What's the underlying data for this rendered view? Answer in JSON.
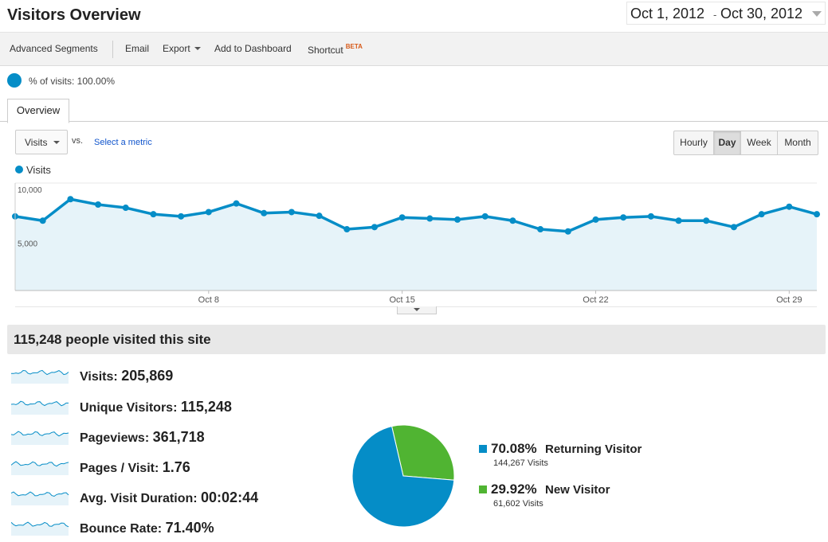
{
  "header": {
    "title": "Visitors Overview",
    "date_start": "Oct 1, 2012",
    "date_sep": "-",
    "date_end": "Oct 30, 2012"
  },
  "toolbar": {
    "advanced_segments": "Advanced Segments",
    "email": "Email",
    "export": "Export",
    "add_to_dashboard": "Add to Dashboard",
    "shortcut": "Shortcut",
    "shortcut_badge": "BETA"
  },
  "segment": {
    "text": "% of visits: 100.00%",
    "percent": 100
  },
  "tabs": [
    {
      "label": "Overview"
    }
  ],
  "controls": {
    "metric": "Visits",
    "vs": "vs.",
    "select_metric": "Select a metric",
    "granularity": [
      {
        "label": "Hourly",
        "active": false
      },
      {
        "label": "Day",
        "active": true
      },
      {
        "label": "Week",
        "active": false
      },
      {
        "label": "Month",
        "active": false
      }
    ]
  },
  "chart_data": {
    "type": "area",
    "series": [
      {
        "name": "Visits",
        "color": "#058dc7",
        "values": [
          6900,
          6500,
          8500,
          8000,
          7700,
          7100,
          6900,
          7300,
          8100,
          7200,
          7300,
          6950,
          5700,
          5900,
          6800,
          6700,
          6600,
          6900,
          6500,
          5700,
          5500,
          6600,
          6800,
          6900,
          6500,
          6500,
          5900,
          7100,
          7800,
          7100
        ]
      }
    ],
    "x": [
      "Oct 1",
      "Oct 2",
      "Oct 3",
      "Oct 4",
      "Oct 5",
      "Oct 6",
      "Oct 7",
      "Oct 8",
      "Oct 9",
      "Oct 10",
      "Oct 11",
      "Oct 12",
      "Oct 13",
      "Oct 14",
      "Oct 15",
      "Oct 16",
      "Oct 17",
      "Oct 18",
      "Oct 19",
      "Oct 20",
      "Oct 21",
      "Oct 22",
      "Oct 23",
      "Oct 24",
      "Oct 25",
      "Oct 26",
      "Oct 27",
      "Oct 28",
      "Oct 29",
      "Oct 30"
    ],
    "x_tick_labels": [
      "Oct 8",
      "Oct 15",
      "Oct 22",
      "Oct 29"
    ],
    "y_tick_labels": [
      "10,000",
      "5,000"
    ],
    "y_ticks": [
      10000,
      5000
    ],
    "ylim": [
      0,
      10000
    ],
    "grid": true,
    "legend": "top-left"
  },
  "summary": {
    "headline": "115,248 people visited this site",
    "metrics": [
      {
        "label": "Visits:",
        "value": "205,869"
      },
      {
        "label": "Unique Visitors:",
        "value": "115,248"
      },
      {
        "label": "Pageviews:",
        "value": "361,718"
      },
      {
        "label": "Pages / Visit:",
        "value": "1.76"
      },
      {
        "label": "Avg. Visit Duration:",
        "value": "00:02:44"
      },
      {
        "label": "Bounce Rate:",
        "value": "71.40%"
      }
    ]
  },
  "visitor_pie": {
    "type": "pie",
    "slices": [
      {
        "name": "Returning Visitor",
        "percent_label": "70.08%",
        "percent": 70.08,
        "visits": "144,267 Visits",
        "color": "#058dc7"
      },
      {
        "name": "New Visitor",
        "percent_label": "29.92%",
        "percent": 29.92,
        "visits": "61,602 Visits",
        "color": "#50b432"
      }
    ]
  }
}
